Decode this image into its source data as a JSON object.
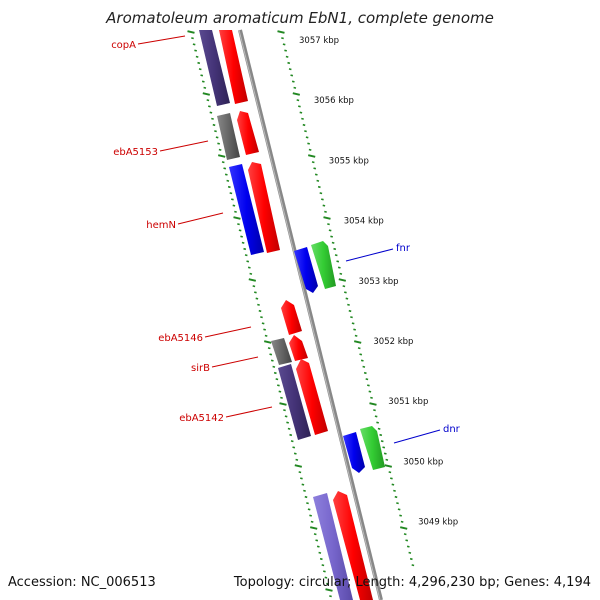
{
  "title": "Aromatoleum aromaticum EbN1, complete genome",
  "footer": {
    "accession": "Accession: NC_006513",
    "summary": "Topology: circular; Length: 4,296,230 bp; Genes: 4,194"
  },
  "colors": {
    "reverse_label": "#cc0000",
    "forward_label": "#0000cc",
    "gene_red": "#ff0000",
    "gene_blue": "#0000ee",
    "gene_green": "#33cc33",
    "gene_purple": "#443377",
    "gene_lavender": "#7766cc",
    "gene_gray": "#666666",
    "backbone": "#888888",
    "ticks": "#228822"
  },
  "kbp_labels": [
    "3057 kbp",
    "3056 kbp",
    "3055 kbp",
    "3054 kbp",
    "3053 kbp",
    "3052 kbp",
    "3051 kbp",
    "3050 kbp",
    "3049 kbp"
  ],
  "gene_labels": {
    "copA": "copA",
    "ebA5153": "ebA5153",
    "hemN": "hemN",
    "ebA5146": "ebA5146",
    "sirB": "sirB",
    "ebA5142": "ebA5142",
    "fnr": "fnr",
    "dnr": "dnr"
  }
}
